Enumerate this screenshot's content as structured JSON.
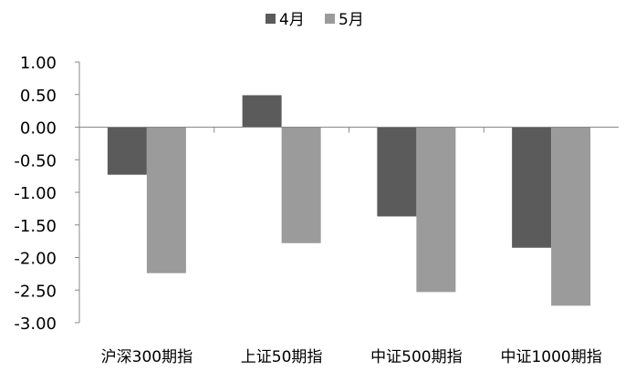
{
  "chart_data": {
    "type": "bar",
    "title": "",
    "xlabel": "",
    "ylabel": "",
    "categories": [
      "沪深300期指",
      "上证50期指",
      "中证500期指",
      "中证1000期指"
    ],
    "series": [
      {
        "name": "4月",
        "color": "#5b5b5b",
        "values": [
          -0.73,
          0.49,
          -1.37,
          -1.85
        ]
      },
      {
        "name": "5月",
        "color": "#9b9b9b",
        "values": [
          -2.24,
          -1.78,
          -2.53,
          -2.74
        ]
      }
    ],
    "ylim": [
      -3.0,
      1.0
    ],
    "yticks": [
      "1.00",
      "0.50",
      "0.00",
      "-0.50",
      "-1.00",
      "-1.50",
      "-2.00",
      "-2.50",
      "-3.00"
    ],
    "grid": false,
    "legend_position": "top"
  }
}
